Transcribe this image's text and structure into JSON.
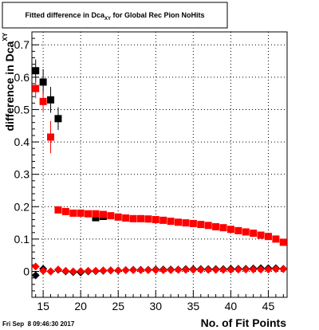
{
  "chart_data": {
    "type": "scatter",
    "title": {
      "prefix": "Fitted difference in Dca",
      "subscript": "XY",
      "suffix": " for Global Rec Pion NoHits"
    },
    "xlabel": "No. of Fit Points",
    "ylabel": {
      "main": "difference in Dca",
      "subscript": "XY"
    },
    "xlim": [
      13.5,
      47.5
    ],
    "ylim": [
      -0.08,
      0.74
    ],
    "x_ticks": [
      15,
      20,
      25,
      30,
      35,
      40,
      45
    ],
    "y_ticks": [
      0,
      0.1,
      0.2,
      0.3,
      0.4,
      0.5,
      0.6,
      0.7
    ],
    "y_tick_labels": [
      "0",
      "0.1",
      "0.2",
      "0.3",
      "0.4",
      "0.5",
      "0.6",
      "0.7"
    ],
    "grid": true,
    "series": [
      {
        "marker": "square",
        "color": "#000000",
        "points": [
          {
            "x": 14,
            "y": 0.62,
            "err": 0.035
          },
          {
            "x": 15,
            "y": 0.585,
            "err": 0.04
          },
          {
            "x": 16,
            "y": 0.53,
            "err": 0.04
          },
          {
            "x": 17,
            "y": 0.472,
            "err": 0.035
          },
          {
            "x": 22,
            "y": 0.166,
            "err": 0.005
          },
          {
            "x": 23,
            "y": 0.17,
            "err": 0.005
          }
        ]
      },
      {
        "marker": "square",
        "color": "#ff0000",
        "points": [
          {
            "x": 14,
            "y": 0.565,
            "err": 0.03
          },
          {
            "x": 15,
            "y": 0.525,
            "err": 0.03
          },
          {
            "x": 16,
            "y": 0.415,
            "err": 0.05
          },
          {
            "x": 17,
            "y": 0.19,
            "err": 0.005
          },
          {
            "x": 18,
            "y": 0.185,
            "err": 0.004
          },
          {
            "x": 19,
            "y": 0.18,
            "err": 0.004
          },
          {
            "x": 20,
            "y": 0.18,
            "err": 0.004
          },
          {
            "x": 21,
            "y": 0.178,
            "err": 0.004
          },
          {
            "x": 22,
            "y": 0.178,
            "err": 0.004
          },
          {
            "x": 23,
            "y": 0.176,
            "err": 0.004
          },
          {
            "x": 24,
            "y": 0.172,
            "err": 0.003
          },
          {
            "x": 25,
            "y": 0.168,
            "err": 0.003
          },
          {
            "x": 26,
            "y": 0.165,
            "err": 0.003
          },
          {
            "x": 27,
            "y": 0.163,
            "err": 0.003
          },
          {
            "x": 28,
            "y": 0.163,
            "err": 0.003
          },
          {
            "x": 29,
            "y": 0.162,
            "err": 0.003
          },
          {
            "x": 30,
            "y": 0.16,
            "err": 0.003
          },
          {
            "x": 31,
            "y": 0.158,
            "err": 0.003
          },
          {
            "x": 32,
            "y": 0.155,
            "err": 0.003
          },
          {
            "x": 33,
            "y": 0.152,
            "err": 0.003
          },
          {
            "x": 34,
            "y": 0.15,
            "err": 0.003
          },
          {
            "x": 35,
            "y": 0.148,
            "err": 0.003
          },
          {
            "x": 36,
            "y": 0.145,
            "err": 0.003
          },
          {
            "x": 37,
            "y": 0.142,
            "err": 0.003
          },
          {
            "x": 38,
            "y": 0.138,
            "err": 0.003
          },
          {
            "x": 39,
            "y": 0.135,
            "err": 0.003
          },
          {
            "x": 40,
            "y": 0.13,
            "err": 0.003
          },
          {
            "x": 41,
            "y": 0.126,
            "err": 0.003
          },
          {
            "x": 42,
            "y": 0.122,
            "err": 0.003
          },
          {
            "x": 43,
            "y": 0.118,
            "err": 0.003
          },
          {
            "x": 44,
            "y": 0.112,
            "err": 0.003
          },
          {
            "x": 45,
            "y": 0.108,
            "err": 0.003
          },
          {
            "x": 46,
            "y": 0.1,
            "err": 0.004
          },
          {
            "x": 47,
            "y": 0.09,
            "err": 0.004
          }
        ]
      },
      {
        "marker": "diamond",
        "color": "#000000",
        "points": [
          {
            "x": 14,
            "y": -0.012
          },
          {
            "x": 15,
            "y": 0.008
          },
          {
            "x": 16,
            "y": 0.0
          },
          {
            "x": 17,
            "y": 0.005
          },
          {
            "x": 18,
            "y": 0.0
          },
          {
            "x": 19,
            "y": -0.002
          },
          {
            "x": 20,
            "y": -0.003
          },
          {
            "x": 21,
            "y": 0.0
          },
          {
            "x": 22,
            "y": 0.001
          },
          {
            "x": 23,
            "y": 0.002
          },
          {
            "x": 24,
            "y": 0.003
          },
          {
            "x": 25,
            "y": 0.003
          },
          {
            "x": 26,
            "y": 0.004
          },
          {
            "x": 27,
            "y": 0.005
          },
          {
            "x": 28,
            "y": 0.005
          },
          {
            "x": 29,
            "y": 0.005
          },
          {
            "x": 30,
            "y": 0.006
          },
          {
            "x": 31,
            "y": 0.006
          },
          {
            "x": 32,
            "y": 0.006
          },
          {
            "x": 33,
            "y": 0.006
          },
          {
            "x": 34,
            "y": 0.007
          },
          {
            "x": 35,
            "y": 0.007
          },
          {
            "x": 36,
            "y": 0.007
          },
          {
            "x": 37,
            "y": 0.007
          },
          {
            "x": 38,
            "y": 0.007
          },
          {
            "x": 39,
            "y": 0.007
          },
          {
            "x": 40,
            "y": 0.008
          },
          {
            "x": 41,
            "y": 0.008
          },
          {
            "x": 42,
            "y": 0.008
          },
          {
            "x": 43,
            "y": 0.009
          },
          {
            "x": 44,
            "y": 0.01
          },
          {
            "x": 45,
            "y": 0.01
          },
          {
            "x": 46,
            "y": 0.01
          },
          {
            "x": 47,
            "y": 0.008
          }
        ]
      },
      {
        "marker": "diamond",
        "color": "#ff0000",
        "points": [
          {
            "x": 14,
            "y": 0.015
          },
          {
            "x": 15,
            "y": 0.002
          },
          {
            "x": 16,
            "y": 0.0
          },
          {
            "x": 17,
            "y": 0.006
          },
          {
            "x": 18,
            "y": 0.002
          },
          {
            "x": 19,
            "y": 0.0
          },
          {
            "x": 20,
            "y": 0.001
          },
          {
            "x": 21,
            "y": 0.002
          },
          {
            "x": 22,
            "y": 0.002
          },
          {
            "x": 23,
            "y": 0.003
          },
          {
            "x": 24,
            "y": 0.003
          },
          {
            "x": 25,
            "y": 0.003
          },
          {
            "x": 26,
            "y": 0.004
          },
          {
            "x": 27,
            "y": 0.004
          },
          {
            "x": 28,
            "y": 0.004
          },
          {
            "x": 29,
            "y": 0.004
          },
          {
            "x": 30,
            "y": 0.004
          },
          {
            "x": 31,
            "y": 0.004
          },
          {
            "x": 32,
            "y": 0.004
          },
          {
            "x": 33,
            "y": 0.005
          },
          {
            "x": 34,
            "y": 0.005
          },
          {
            "x": 35,
            "y": 0.005
          },
          {
            "x": 36,
            "y": 0.005
          },
          {
            "x": 37,
            "y": 0.005
          },
          {
            "x": 38,
            "y": 0.005
          },
          {
            "x": 39,
            "y": 0.005
          },
          {
            "x": 40,
            "y": 0.005
          },
          {
            "x": 41,
            "y": 0.006
          },
          {
            "x": 42,
            "y": 0.006
          },
          {
            "x": 43,
            "y": 0.006
          },
          {
            "x": 44,
            "y": 0.006
          },
          {
            "x": 45,
            "y": 0.006
          },
          {
            "x": 46,
            "y": 0.007
          },
          {
            "x": 47,
            "y": 0.007
          }
        ]
      }
    ]
  },
  "footer": {
    "timestamp": "Fri Sep  8 09:46:30 2017"
  }
}
